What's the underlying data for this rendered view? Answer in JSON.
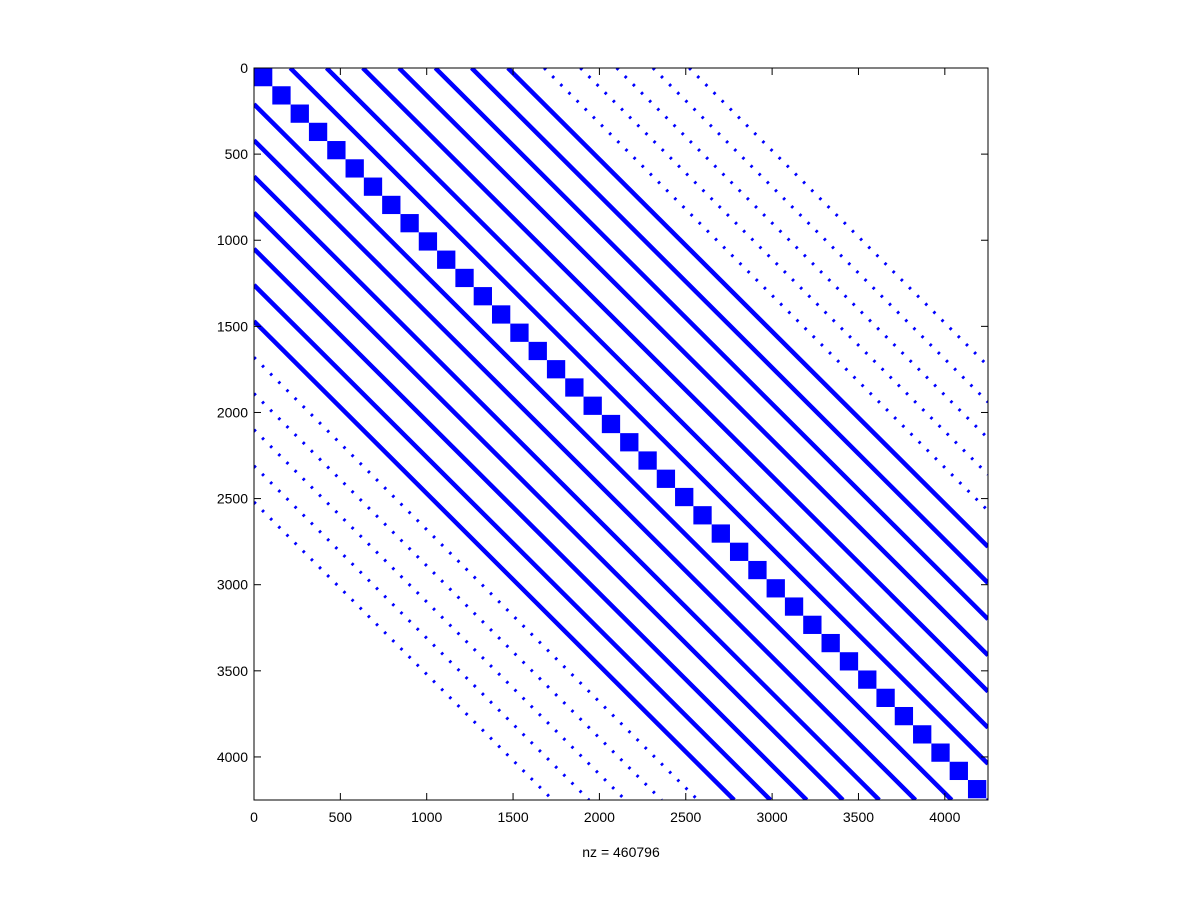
{
  "chart_data": {
    "type": "spy",
    "xlabel": "nz = 460796",
    "color": "#0000ff",
    "xlim": [
      0,
      4250
    ],
    "ylim": [
      0,
      4250
    ],
    "xticks": [
      0,
      500,
      1000,
      1500,
      2000,
      2500,
      3000,
      3500,
      4000
    ],
    "yticks": [
      0,
      500,
      1000,
      1500,
      2000,
      2500,
      3000,
      3500,
      4000
    ],
    "block_size": 106,
    "solid_offsets": [
      -1470,
      -1260,
      -1050,
      -840,
      -630,
      -420,
      -210,
      210,
      420,
      630,
      840,
      1050,
      1260,
      1470
    ],
    "dotted_offsets": [
      -2520,
      -2310,
      -2100,
      -1890,
      -1680,
      1680,
      1890,
      2100,
      2310,
      2520
    ]
  }
}
